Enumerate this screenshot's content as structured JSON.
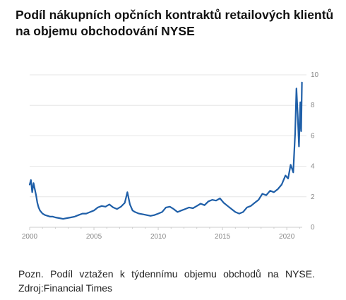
{
  "title_lines": [
    "Podíl nákupních opčních kontraktů retailových klientů",
    "na objemu obchodování NYSE"
  ],
  "note": {
    "line1": "Pozn. Podíl vztažen k týdennímu objemu obchodů na NYSE.",
    "line2": "Zdroj:Financial Times"
  },
  "colors": {
    "line": "#1f5fa8",
    "grid": "#e6e6e6",
    "axis": "#cccccc",
    "tick_text": "#888888"
  },
  "chart_data": {
    "type": "line",
    "title": "",
    "xlabel": "",
    "ylabel": "",
    "xlim": [
      2000,
      2021.2
    ],
    "ylim": [
      0,
      10
    ],
    "x_ticks": [
      2000,
      2005,
      2010,
      2015,
      2020
    ],
    "x_tick_labels": [
      "2000",
      "2005",
      "2010",
      "2015",
      "2020"
    ],
    "y_ticks": [
      0,
      2,
      4,
      6,
      8,
      10
    ],
    "y_tick_labels": [
      "0",
      "2",
      "4",
      "6",
      "8",
      "10"
    ],
    "y_axis_side": "right",
    "grid": "horizontal",
    "series": [
      {
        "name": "",
        "x": [
          2000.0,
          2000.1,
          2000.2,
          2000.3,
          2000.4,
          2000.5,
          2000.6,
          2000.7,
          2000.8,
          2000.9,
          2001.0,
          2001.2,
          2001.4,
          2001.6,
          2001.8,
          2002.0,
          2002.3,
          2002.6,
          2002.9,
          2003.2,
          2003.5,
          2003.8,
          2004.1,
          2004.4,
          2004.7,
          2005.0,
          2005.3,
          2005.6,
          2005.9,
          2006.2,
          2006.5,
          2006.8,
          2007.1,
          2007.4,
          2007.6,
          2007.8,
          2008.0,
          2008.2,
          2008.5,
          2008.8,
          2009.1,
          2009.4,
          2009.7,
          2010.0,
          2010.3,
          2010.6,
          2010.9,
          2011.2,
          2011.5,
          2011.8,
          2012.1,
          2012.4,
          2012.7,
          2013.0,
          2013.3,
          2013.6,
          2013.9,
          2014.2,
          2014.5,
          2014.8,
          2015.1,
          2015.4,
          2015.7,
          2016.0,
          2016.3,
          2016.6,
          2016.9,
          2017.2,
          2017.5,
          2017.8,
          2018.1,
          2018.4,
          2018.7,
          2019.0,
          2019.3,
          2019.6,
          2019.9,
          2020.1,
          2020.3,
          2020.5,
          2020.65,
          2020.75,
          2020.85,
          2020.95,
          2021.05,
          2021.12,
          2021.18
        ],
        "values": [
          2.8,
          3.1,
          2.3,
          2.9,
          2.5,
          2.1,
          1.6,
          1.3,
          1.1,
          1.0,
          0.9,
          0.8,
          0.75,
          0.7,
          0.7,
          0.65,
          0.6,
          0.55,
          0.6,
          0.65,
          0.7,
          0.8,
          0.9,
          0.9,
          1.0,
          1.1,
          1.3,
          1.4,
          1.35,
          1.5,
          1.3,
          1.2,
          1.35,
          1.6,
          2.3,
          1.5,
          1.1,
          1.0,
          0.9,
          0.85,
          0.8,
          0.75,
          0.8,
          0.9,
          1.0,
          1.3,
          1.35,
          1.2,
          1.0,
          1.1,
          1.2,
          1.3,
          1.25,
          1.4,
          1.55,
          1.45,
          1.7,
          1.8,
          1.75,
          1.9,
          1.6,
          1.4,
          1.2,
          1.0,
          0.9,
          1.0,
          1.3,
          1.4,
          1.6,
          1.8,
          2.2,
          2.1,
          2.4,
          2.3,
          2.5,
          2.8,
          3.4,
          3.2,
          4.1,
          3.6,
          6.2,
          9.1,
          7.4,
          5.3,
          8.2,
          6.3,
          9.5
        ]
      }
    ]
  }
}
